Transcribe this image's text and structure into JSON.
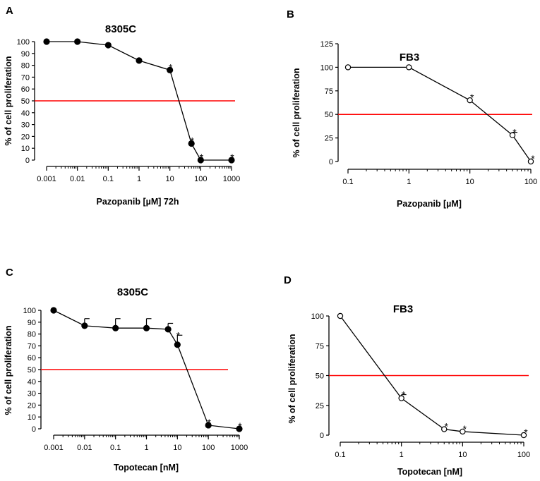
{
  "figure": {
    "background": "#ffffff",
    "line_color": "#000000",
    "threshold_color": "#ff0000"
  },
  "chart_data": [
    {
      "panel": "A",
      "type": "line",
      "title": "8305C",
      "xlabel": "Pazopanib [µM] 72h",
      "ylabel": "% of cell proliferation",
      "xscale": "log",
      "xlim": [
        0.001,
        1000
      ],
      "ylim": [
        0,
        100
      ],
      "xticks": [
        0.001,
        0.01,
        0.1,
        1,
        10,
        100,
        1000
      ],
      "xtick_labels": [
        "0.001",
        "0.01",
        "0.1",
        "1",
        "10",
        "100",
        "1000"
      ],
      "yticks": [
        0,
        10,
        20,
        30,
        40,
        50,
        60,
        70,
        80,
        90,
        100
      ],
      "ytick_labels": [
        "0",
        "10",
        "20",
        "30",
        "40",
        "50",
        "60",
        "70",
        "80",
        "90",
        "100"
      ],
      "marker": "filled",
      "threshold": 50,
      "threshold_x_end": 5000,
      "series": [
        {
          "name": "8305C",
          "x": [
            0.001,
            0.01,
            0.1,
            1,
            10,
            50,
            100,
            1000
          ],
          "y": [
            100,
            100,
            97,
            84,
            76,
            14,
            0,
            0
          ],
          "err": [
            0,
            0,
            0,
            0,
            0,
            0,
            0,
            0
          ],
          "significant": [
            false,
            false,
            false,
            false,
            true,
            true,
            true,
            true
          ]
        }
      ]
    },
    {
      "panel": "B",
      "type": "line",
      "title": "FB3",
      "xlabel": "Pazopanib [µM]",
      "ylabel": "% of cell proliferation",
      "xscale": "log",
      "xlim": [
        0.1,
        100
      ],
      "ylim": [
        0,
        125
      ],
      "xticks": [
        0.1,
        1,
        10,
        100
      ],
      "xtick_labels": [
        "0.1",
        "1",
        "10",
        "100"
      ],
      "yticks": [
        0,
        25,
        50,
        75,
        100,
        125
      ],
      "ytick_labels": [
        "0",
        "25",
        "50",
        "75",
        "100",
        "125"
      ],
      "marker": "open",
      "threshold": 50,
      "threshold_x_end": 100,
      "series": [
        {
          "name": "FB3",
          "x": [
            0.1,
            1,
            10,
            50,
            100
          ],
          "y": [
            100,
            100,
            65,
            28,
            0
          ],
          "err": [
            0,
            0,
            0,
            3,
            0
          ],
          "significant": [
            false,
            false,
            true,
            true,
            true
          ]
        }
      ]
    },
    {
      "panel": "C",
      "type": "line",
      "title": "8305C",
      "xlabel": "Topotecan [nM]",
      "ylabel": "% of cell proliferation",
      "xscale": "log",
      "xlim": [
        0.001,
        1000
      ],
      "ylim": [
        0,
        100
      ],
      "xticks": [
        0.001,
        0.01,
        0.1,
        1,
        10,
        100,
        1000
      ],
      "xtick_labels": [
        "0.001",
        "0.01",
        "0.1",
        "1",
        "10",
        "100",
        "1000"
      ],
      "yticks": [
        0,
        10,
        20,
        30,
        40,
        50,
        60,
        70,
        80,
        90,
        100
      ],
      "ytick_labels": [
        "0",
        "10",
        "20",
        "30",
        "40",
        "50",
        "60",
        "70",
        "80",
        "90",
        "100"
      ],
      "marker": "filled",
      "threshold": 50,
      "threshold_x_end": 500,
      "series": [
        {
          "name": "8305C",
          "x": [
            0.001,
            0.01,
            0.1,
            1,
            5,
            10,
            100,
            1000
          ],
          "y": [
            100,
            87,
            85,
            85,
            84,
            71,
            3,
            0
          ],
          "err": [
            0,
            6,
            8,
            8,
            5,
            8,
            0,
            0
          ],
          "significant": [
            false,
            false,
            false,
            false,
            false,
            true,
            true,
            true
          ]
        }
      ]
    },
    {
      "panel": "D",
      "type": "line",
      "title": "FB3",
      "xlabel": "Topotecan [nM]",
      "ylabel": "% of cell proliferation",
      "xscale": "log",
      "xlim": [
        0.1,
        100
      ],
      "ylim": [
        0,
        100
      ],
      "xticks": [
        0.1,
        1,
        10,
        100
      ],
      "xtick_labels": [
        "0.1",
        "1",
        "10",
        "100"
      ],
      "yticks": [
        0,
        25,
        50,
        75,
        100
      ],
      "ytick_labels": [
        "0",
        "25",
        "50",
        "75",
        "100"
      ],
      "marker": "open",
      "threshold": 50,
      "threshold_x_end": 100,
      "series": [
        {
          "name": "FB3",
          "x": [
            0.1,
            1,
            5,
            10,
            100
          ],
          "y": [
            100,
            31,
            5,
            3,
            0
          ],
          "err": [
            0,
            3,
            0,
            0,
            0
          ],
          "significant": [
            false,
            true,
            true,
            true,
            true
          ]
        }
      ]
    }
  ]
}
